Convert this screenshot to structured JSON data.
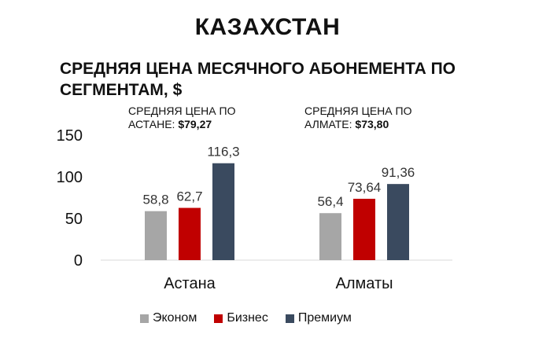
{
  "country_title": "КАЗАХСТАН",
  "chart_title": "СРЕДНЯЯ ЦЕНА МЕСЯЧНОГО АБОНЕМЕНТА ПО СЕГМЕНТАМ, $",
  "annotations": {
    "astana_label": "СРЕДНЯЯ ЦЕНА ПО АСТАНЕ: ",
    "astana_value": "$79,27",
    "almaty_label": "СРЕДНЯЯ ЦЕНА ПО АЛМАТЕ: ",
    "almaty_value": "$73,80"
  },
  "colors": {
    "Эконом": "#a6a6a6",
    "Бизнес": "#c00000",
    "Премиум": "#3a4a5f"
  },
  "chart_data": {
    "type": "bar",
    "title": "СРЕДНЯЯ ЦЕНА МЕСЯЧНОГО АБОНЕМЕНТА ПО СЕГМЕНТАМ, $",
    "categories": [
      "Астана",
      "Алматы"
    ],
    "series": [
      {
        "name": "Эконом",
        "values": [
          58.8,
          56.4
        ],
        "labels": [
          "58,8",
          "56,4"
        ]
      },
      {
        "name": "Бизнес",
        "values": [
          62.7,
          73.64
        ],
        "labels": [
          "62,7",
          "73,64"
        ]
      },
      {
        "name": "Премиум",
        "values": [
          116.3,
          91.36
        ],
        "labels": [
          "116,3",
          "91,36"
        ]
      }
    ],
    "ylim": [
      0,
      150
    ],
    "yticks": [
      0,
      50,
      100,
      150
    ],
    "grid": false,
    "legend_position": "bottom"
  }
}
